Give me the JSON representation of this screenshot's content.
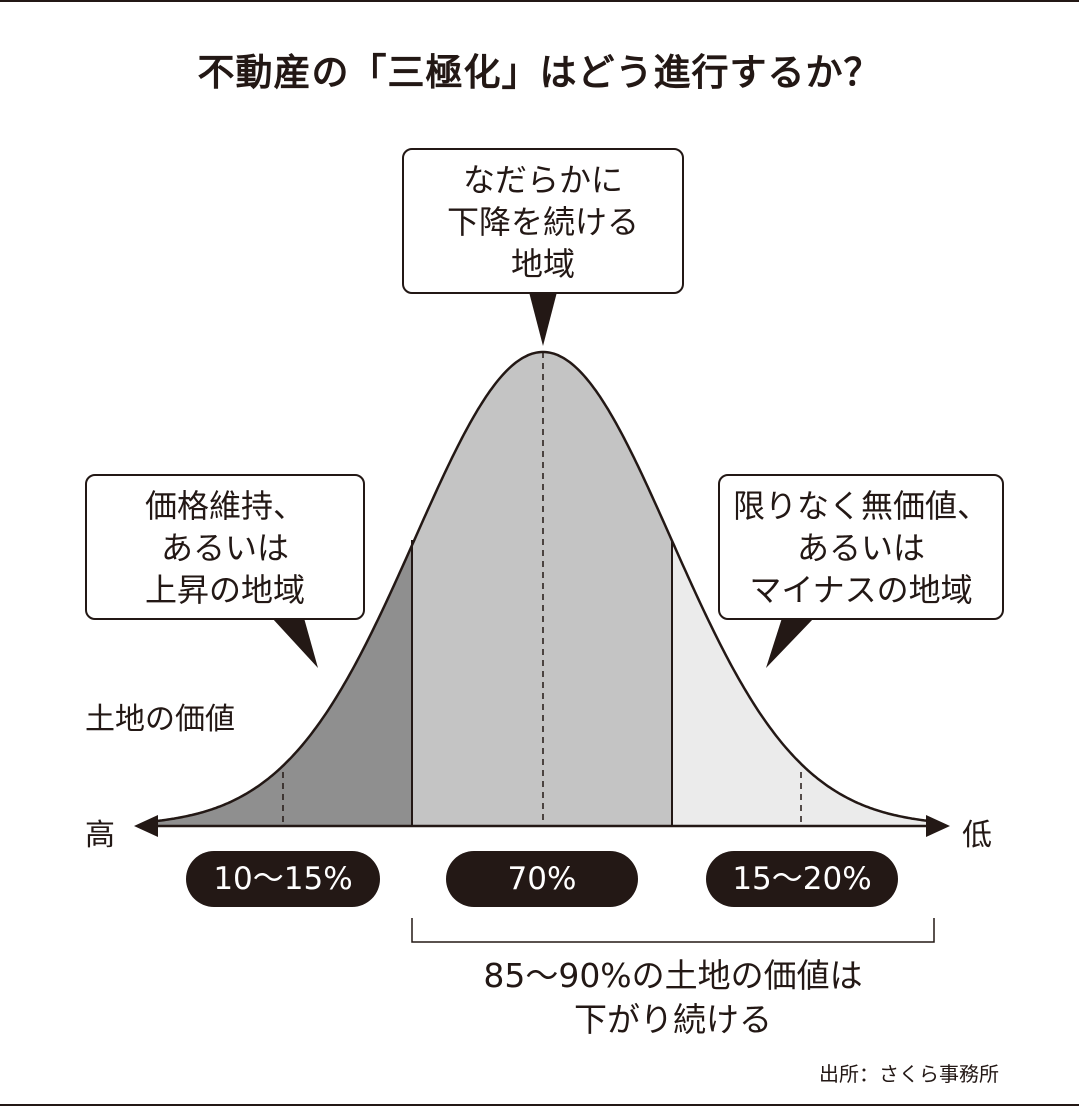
{
  "title": "不動産の「三極化」はどう進行するか？",
  "callouts": {
    "center": [
      "なだらかに",
      "下降を続ける",
      "地域"
    ],
    "left": [
      "価格維持、",
      "あるいは",
      "上昇の地域"
    ],
    "right": [
      "限りなく無価値、",
      "あるいは",
      "マイナスの地域"
    ]
  },
  "axis": {
    "label": "土地の価値",
    "left_end": "高",
    "right_end": "低"
  },
  "segments": [
    {
      "label": "10〜15%",
      "fill": "#8f8f8f"
    },
    {
      "label": "70%",
      "fill": "#c4c4c4"
    },
    {
      "label": "15〜20%",
      "fill": "#ebebeb"
    }
  ],
  "bracket_note": [
    "85〜90%の土地の価値は",
    "下がり続ける"
  ],
  "source": "出所：さくら事務所",
  "colors": {
    "ink": "#231815",
    "dark_fill": "#8f8f8f",
    "mid_fill": "#c4c4c4",
    "light_fill": "#ebebeb"
  }
}
